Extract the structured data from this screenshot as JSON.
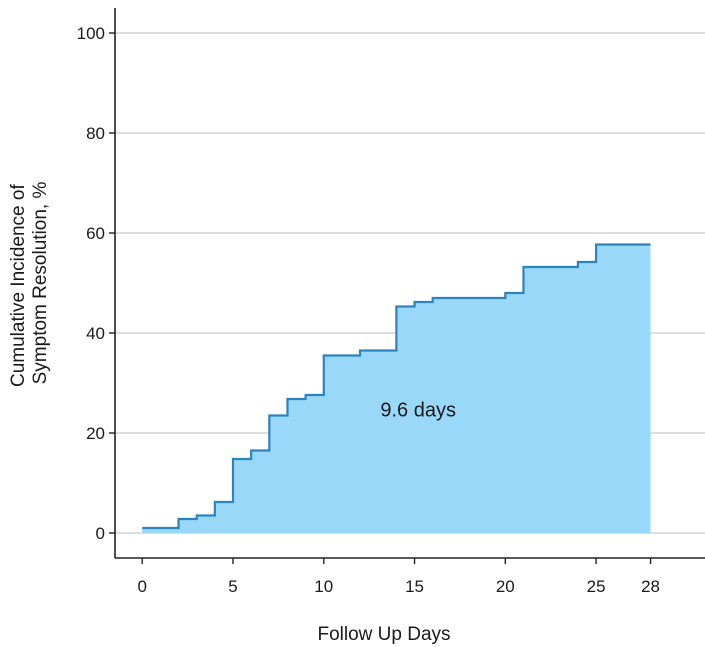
{
  "chart_data": {
    "type": "area",
    "title": "",
    "xlabel": "Follow Up Days",
    "ylabel_lines": [
      "Cumulative Incidence of",
      "Symptom Resolution, %"
    ],
    "xlim": [
      -1.5,
      31
    ],
    "ylim": [
      -5,
      105
    ],
    "x_ticks": [
      0,
      5,
      10,
      15,
      20,
      25,
      28
    ],
    "y_ticks": [
      0,
      20,
      40,
      60,
      80,
      100
    ],
    "grid": "horizontal",
    "step": "post",
    "series": [
      {
        "color": "#2b83c0",
        "fill": "#99d8f8",
        "x": [
          0,
          2,
          3,
          4,
          5,
          6,
          7,
          8,
          9,
          10,
          12,
          14,
          15,
          16,
          20,
          21,
          24,
          25,
          28
        ],
        "y": [
          1,
          2.8,
          3.5,
          6.2,
          14.8,
          16.5,
          23.5,
          26.8,
          27.6,
          35.5,
          36.5,
          45.3,
          46.2,
          47.0,
          48.0,
          53.2,
          54.2,
          57.7,
          57.7
        ]
      }
    ],
    "annotations": [
      {
        "text": "9.6 days",
        "x": 15.2,
        "y": 23.3
      }
    ]
  }
}
